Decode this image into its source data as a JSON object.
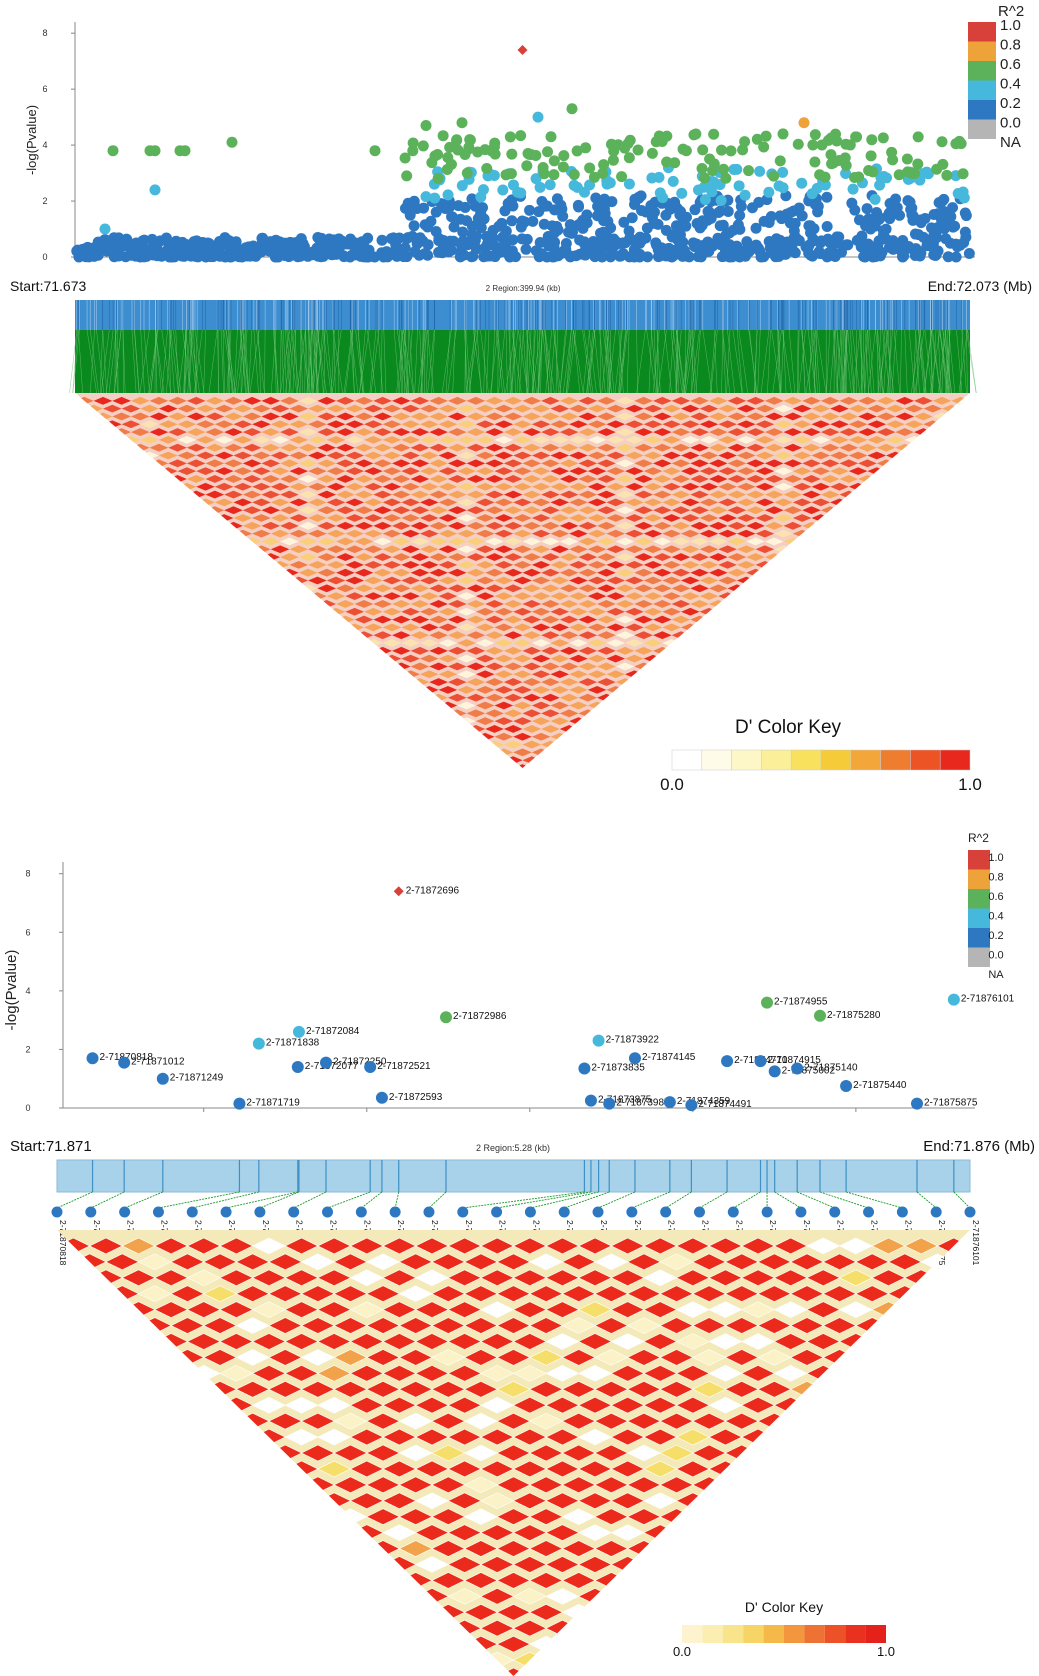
{
  "colors": {
    "r2_1_0": "#d7413a",
    "r2_0_8": "#eea33a",
    "r2_0_6": "#5bb25a",
    "r2_0_4": "#46b8dc",
    "r2_0_2": "#2e78c2",
    "r2_0_0": "#b5b5b5",
    "snp_blue": "#2e78c2",
    "snp_band_blue": "#3d8ed0",
    "snp_band_green": "#0a8a1e",
    "ld_bg": "#f6cfc4",
    "ld_red": "#ec2a1c",
    "box_fill": "#a7d2ea",
    "box_line": "#3e90c6"
  },
  "chart_data": [
    {
      "id": "top-manhattan",
      "type": "scatter",
      "ylabel": "-log(Pvalue)",
      "yticks": [
        "0",
        "2",
        "4",
        "6",
        "8"
      ],
      "ylim": [
        0,
        8.4
      ],
      "xlim": [
        71.673,
        72.073
      ],
      "lead_snp": {
        "x": 71.873,
        "y": 7.4,
        "r2": "1.0"
      },
      "r2_legend": {
        "title": "R^2",
        "labels": [
          "1.0",
          "0.8",
          "0.6",
          "0.4",
          "0.2",
          "0.0",
          "NA"
        ]
      },
      "region": {
        "start": "Start:71.673",
        "center": "2 Region:399.94 (kb)",
        "end": "End:72.073 (Mb)"
      },
      "ld_color_key": {
        "title": "D' Color Key",
        "min": "0.0",
        "max": "1.0"
      }
    },
    {
      "id": "bottom-manhattan",
      "type": "scatter",
      "ylabel": "-log(Pvalue)",
      "yticks": [
        "0",
        "2",
        "4",
        "6",
        "8"
      ],
      "ylim": [
        0,
        8.4
      ],
      "xlim": [
        71.8706,
        71.8762
      ],
      "r2_legend": {
        "title": "R^2",
        "labels": [
          "1.0",
          "0.8",
          "0.6",
          "0.4",
          "0.2",
          "0.0",
          "NA"
        ]
      },
      "region": {
        "start": "Start:71.871",
        "center": "2 Region:5.28 (kb)",
        "end": "End:71.876 (Mb)"
      },
      "points": [
        {
          "label": "2-71870818",
          "x": 71.870818,
          "y": 1.7,
          "r2": "0.2"
        },
        {
          "label": "2-71871012",
          "x": 71.871012,
          "y": 1.55,
          "r2": "0.2"
        },
        {
          "label": "2-71871249",
          "x": 71.871249,
          "y": 1.0,
          "r2": "0.2"
        },
        {
          "label": "2-71871719",
          "x": 71.871719,
          "y": 0.15,
          "r2": "0.2"
        },
        {
          "label": "2-71871838",
          "x": 71.871838,
          "y": 2.2,
          "r2": "0.4"
        },
        {
          "label": "2-71872084",
          "x": 71.872084,
          "y": 2.6,
          "r2": "0.4"
        },
        {
          "label": "2-71872077",
          "x": 71.872077,
          "y": 1.4,
          "r2": "0.2"
        },
        {
          "label": "2-71872250",
          "x": 71.87225,
          "y": 1.55,
          "r2": "0.2"
        },
        {
          "label": "2-71872521",
          "x": 71.872521,
          "y": 1.4,
          "r2": "0.2"
        },
        {
          "label": "2-71872593",
          "x": 71.872593,
          "y": 0.35,
          "r2": "0.2"
        },
        {
          "label": "2-71872696",
          "x": 71.872696,
          "y": 7.4,
          "r2": "1.0"
        },
        {
          "label": "2-71872986",
          "x": 71.872986,
          "y": 3.1,
          "r2": "0.6"
        },
        {
          "label": "2-71873835",
          "x": 71.873835,
          "y": 1.35,
          "r2": "0.2"
        },
        {
          "label": "2-71873875",
          "x": 71.873875,
          "y": 0.25,
          "r2": "0.2"
        },
        {
          "label": "2-71873922",
          "x": 71.873922,
          "y": 2.3,
          "r2": "0.4"
        },
        {
          "label": "2-71873987",
          "x": 71.873987,
          "y": 0.15,
          "r2": "0.2"
        },
        {
          "label": "2-71874145",
          "x": 71.874145,
          "y": 1.7,
          "r2": "0.2"
        },
        {
          "label": "2-71874359",
          "x": 71.874359,
          "y": 0.2,
          "r2": "0.2"
        },
        {
          "label": "2-71874491",
          "x": 71.874491,
          "y": 0.1,
          "r2": "0.2"
        },
        {
          "label": "2-71874710",
          "x": 71.87471,
          "y": 1.6,
          "r2": "0.2"
        },
        {
          "label": "2-71874915",
          "x": 71.874915,
          "y": 1.6,
          "r2": "0.2"
        },
        {
          "label": "2-71874955",
          "x": 71.874955,
          "y": 3.6,
          "r2": "0.6"
        },
        {
          "label": "2-71875002",
          "x": 71.875002,
          "y": 1.25,
          "r2": "0.2"
        },
        {
          "label": "2-71875140",
          "x": 71.87514,
          "y": 1.35,
          "r2": "0.2"
        },
        {
          "label": "2-71875280",
          "x": 71.87528,
          "y": 3.15,
          "r2": "0.6"
        },
        {
          "label": "2-71875440",
          "x": 71.87544,
          "y": 0.75,
          "r2": "0.2"
        },
        {
          "label": "2-71875875",
          "x": 71.875875,
          "y": 0.15,
          "r2": "0.2"
        },
        {
          "label": "2-71876101",
          "x": 71.876101,
          "y": 3.7,
          "r2": "0.4"
        }
      ],
      "snp_labels": [
        "2-71870818",
        "2-71871012",
        "2-71871249",
        "2-71871719",
        "2-71871838",
        "2-71872077",
        "2-71872084",
        "2-71872250",
        "2-71872521",
        "2-71872593",
        "2-71872696",
        "2-71872986",
        "2-71873835",
        "2-71873875",
        "2-71873922",
        "2-71873987",
        "2-71874145",
        "2-71874359",
        "2-71874491",
        "2-71874710",
        "2-71874915",
        "2-71874955",
        "2-71875002",
        "2-71875140",
        "2-71875280",
        "2-71875440",
        "2-71875875",
        "2-71876101"
      ],
      "ld_color_key": {
        "title": "D' Color Key",
        "min": "0.0",
        "max": "1.0"
      }
    }
  ]
}
